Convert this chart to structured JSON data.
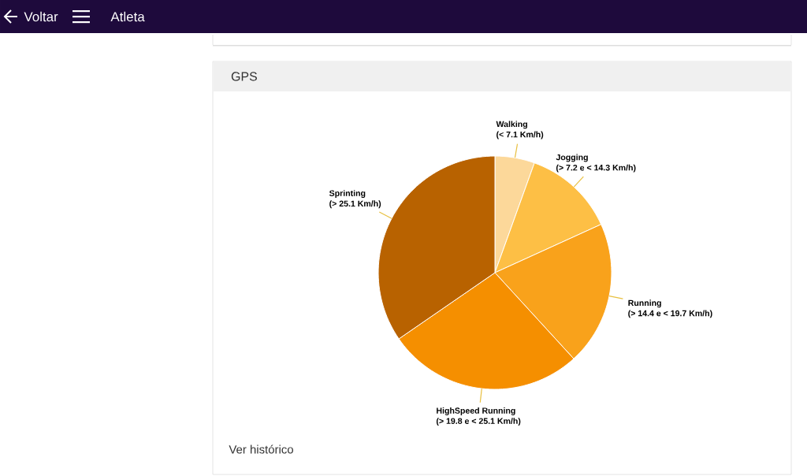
{
  "chart_data": {
    "type": "pie",
    "title": "GPS",
    "categories": [
      "Walking",
      "Jogging",
      "Running",
      "HighSpeed Running",
      "Sprinting"
    ],
    "values": [
      5.5,
      12.7,
      20,
      27.2,
      34.6
    ],
    "colors": [
      "#fcd89a",
      "#fdbf45",
      "#f9a21b",
      "#f58f00",
      "#b86200"
    ],
    "annotations": [
      "(< 7.1 Km/h)",
      "(> 7.2 e < 14.3 Km/h)",
      "(> 14.4 e < 19.7 Km/h)",
      "(> 19.8 e < 25.1 Km/h)",
      "(> 25.1 Km/h)",
      "Ver histórico",
      "Voltar",
      "Atleta"
    ]
  }
}
